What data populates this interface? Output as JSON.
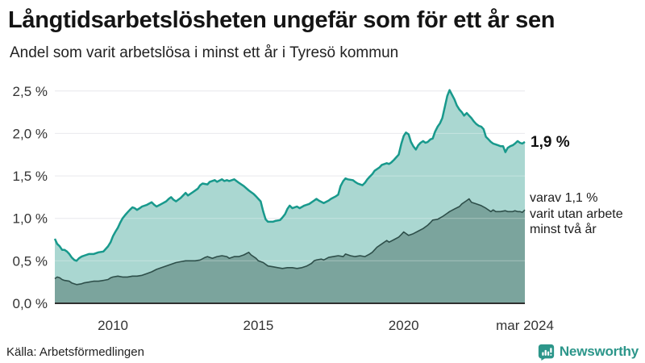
{
  "header": {
    "title": "Långtidsarbetslösheten ungefär som för ett år sen",
    "subtitle": "Andel som varit arbetslösa i minst ett år i Tyresö kommun"
  },
  "annotations": {
    "latest_value": "1,9 %",
    "secondary": "varav 1,1 %\nvarit utan arbete\nminst två år"
  },
  "footer": {
    "source": "Källa: Arbetsförmedlingen",
    "brand": "Newsworthy"
  },
  "colors": {
    "line_1yr": "#18998c",
    "fill_1yr": "#aad7d1",
    "line_2yr": "#2e4f4a",
    "fill_2yr": "#7ba49d",
    "grid": "#e2e2e6",
    "grid_overlay": "rgba(255,255,255,0.32)",
    "axis": "#2f2f2f",
    "brand": "#2c968a"
  },
  "chart_data": {
    "type": "area",
    "title": "Långtidsarbetslösheten ungefär som för ett år sen",
    "subtitle": "Andel som varit arbetslösa i minst ett år i Tyresö kommun",
    "xlabel": "",
    "ylabel": "",
    "grid": "horizontal",
    "legend": "none",
    "x_range": [
      2008.0,
      2024.17
    ],
    "ylim": [
      0,
      2.5
    ],
    "y_axis": {
      "values": [
        0,
        0.5,
        1.0,
        1.5,
        2.0,
        2.5
      ],
      "tick_labels": [
        "0,0 %",
        "0,5 %",
        "1,0 %",
        "1,5 %",
        "2,0 %",
        "2,5 %"
      ]
    },
    "x_axis": {
      "ticks": [
        {
          "value": 2010.0,
          "label": "2010"
        },
        {
          "value": 2015.0,
          "label": "2015"
        },
        {
          "value": 2020.0,
          "label": "2020"
        },
        {
          "value": 2024.17,
          "label": "mar 2024"
        }
      ]
    },
    "series": [
      {
        "name": "minst ett år",
        "end_label": "1,9 %",
        "end_value": 1.9,
        "points": [
          [
            2008.0,
            0.76
          ],
          [
            2008.08,
            0.7
          ],
          [
            2008.17,
            0.67
          ],
          [
            2008.25,
            0.63
          ],
          [
            2008.33,
            0.63
          ],
          [
            2008.42,
            0.61
          ],
          [
            2008.5,
            0.58
          ],
          [
            2008.58,
            0.54
          ],
          [
            2008.67,
            0.51
          ],
          [
            2008.75,
            0.5
          ],
          [
            2008.83,
            0.53
          ],
          [
            2008.92,
            0.55
          ],
          [
            2009.0,
            0.56
          ],
          [
            2009.17,
            0.58
          ],
          [
            2009.33,
            0.58
          ],
          [
            2009.5,
            0.6
          ],
          [
            2009.67,
            0.61
          ],
          [
            2009.75,
            0.64
          ],
          [
            2009.83,
            0.67
          ],
          [
            2009.92,
            0.72
          ],
          [
            2010.0,
            0.79
          ],
          [
            2010.08,
            0.84
          ],
          [
            2010.17,
            0.89
          ],
          [
            2010.25,
            0.95
          ],
          [
            2010.33,
            1.0
          ],
          [
            2010.42,
            1.04
          ],
          [
            2010.5,
            1.07
          ],
          [
            2010.58,
            1.1
          ],
          [
            2010.67,
            1.13
          ],
          [
            2010.75,
            1.12
          ],
          [
            2010.83,
            1.1
          ],
          [
            2010.92,
            1.12
          ],
          [
            2011.0,
            1.14
          ],
          [
            2011.17,
            1.16
          ],
          [
            2011.33,
            1.19
          ],
          [
            2011.42,
            1.16
          ],
          [
            2011.5,
            1.14
          ],
          [
            2011.67,
            1.17
          ],
          [
            2011.83,
            1.2
          ],
          [
            2011.92,
            1.23
          ],
          [
            2012.0,
            1.25
          ],
          [
            2012.08,
            1.22
          ],
          [
            2012.17,
            1.2
          ],
          [
            2012.33,
            1.24
          ],
          [
            2012.5,
            1.3
          ],
          [
            2012.58,
            1.27
          ],
          [
            2012.75,
            1.31
          ],
          [
            2012.92,
            1.35
          ],
          [
            2013.0,
            1.39
          ],
          [
            2013.08,
            1.41
          ],
          [
            2013.25,
            1.4
          ],
          [
            2013.33,
            1.43
          ],
          [
            2013.5,
            1.45
          ],
          [
            2013.58,
            1.43
          ],
          [
            2013.75,
            1.46
          ],
          [
            2013.83,
            1.44
          ],
          [
            2013.92,
            1.45
          ],
          [
            2014.0,
            1.44
          ],
          [
            2014.17,
            1.46
          ],
          [
            2014.25,
            1.44
          ],
          [
            2014.33,
            1.42
          ],
          [
            2014.5,
            1.38
          ],
          [
            2014.67,
            1.33
          ],
          [
            2014.83,
            1.29
          ],
          [
            2014.92,
            1.26
          ],
          [
            2015.0,
            1.23
          ],
          [
            2015.08,
            1.2
          ],
          [
            2015.17,
            1.08
          ],
          [
            2015.25,
            0.99
          ],
          [
            2015.33,
            0.96
          ],
          [
            2015.5,
            0.96
          ],
          [
            2015.58,
            0.97
          ],
          [
            2015.75,
            0.98
          ],
          [
            2015.83,
            1.01
          ],
          [
            2015.92,
            1.05
          ],
          [
            2016.0,
            1.11
          ],
          [
            2016.08,
            1.15
          ],
          [
            2016.17,
            1.12
          ],
          [
            2016.33,
            1.14
          ],
          [
            2016.42,
            1.12
          ],
          [
            2016.58,
            1.15
          ],
          [
            2016.75,
            1.17
          ],
          [
            2016.92,
            1.21
          ],
          [
            2017.0,
            1.23
          ],
          [
            2017.08,
            1.21
          ],
          [
            2017.25,
            1.18
          ],
          [
            2017.42,
            1.21
          ],
          [
            2017.5,
            1.23
          ],
          [
            2017.67,
            1.26
          ],
          [
            2017.75,
            1.28
          ],
          [
            2017.83,
            1.38
          ],
          [
            2017.92,
            1.44
          ],
          [
            2018.0,
            1.47
          ],
          [
            2018.08,
            1.46
          ],
          [
            2018.25,
            1.45
          ],
          [
            2018.33,
            1.43
          ],
          [
            2018.42,
            1.41
          ],
          [
            2018.5,
            1.4
          ],
          [
            2018.58,
            1.39
          ],
          [
            2018.67,
            1.42
          ],
          [
            2018.75,
            1.46
          ],
          [
            2018.83,
            1.49
          ],
          [
            2018.92,
            1.52
          ],
          [
            2019.0,
            1.56
          ],
          [
            2019.17,
            1.6
          ],
          [
            2019.25,
            1.63
          ],
          [
            2019.42,
            1.65
          ],
          [
            2019.5,
            1.64
          ],
          [
            2019.58,
            1.66
          ],
          [
            2019.67,
            1.69
          ],
          [
            2019.75,
            1.72
          ],
          [
            2019.83,
            1.75
          ],
          [
            2019.92,
            1.88
          ],
          [
            2020.0,
            1.97
          ],
          [
            2020.08,
            2.01
          ],
          [
            2020.17,
            1.99
          ],
          [
            2020.25,
            1.9
          ],
          [
            2020.33,
            1.85
          ],
          [
            2020.42,
            1.81
          ],
          [
            2020.5,
            1.86
          ],
          [
            2020.58,
            1.89
          ],
          [
            2020.67,
            1.91
          ],
          [
            2020.75,
            1.89
          ],
          [
            2020.83,
            1.9
          ],
          [
            2020.92,
            1.93
          ],
          [
            2021.0,
            1.94
          ],
          [
            2021.08,
            2.02
          ],
          [
            2021.17,
            2.08
          ],
          [
            2021.25,
            2.12
          ],
          [
            2021.33,
            2.18
          ],
          [
            2021.42,
            2.32
          ],
          [
            2021.5,
            2.44
          ],
          [
            2021.58,
            2.51
          ],
          [
            2021.67,
            2.45
          ],
          [
            2021.75,
            2.4
          ],
          [
            2021.83,
            2.33
          ],
          [
            2021.92,
            2.28
          ],
          [
            2022.0,
            2.25
          ],
          [
            2022.08,
            2.21
          ],
          [
            2022.17,
            2.24
          ],
          [
            2022.25,
            2.21
          ],
          [
            2022.33,
            2.18
          ],
          [
            2022.42,
            2.14
          ],
          [
            2022.5,
            2.11
          ],
          [
            2022.58,
            2.09
          ],
          [
            2022.67,
            2.08
          ],
          [
            2022.75,
            2.05
          ],
          [
            2022.83,
            1.96
          ],
          [
            2022.92,
            1.93
          ],
          [
            2023.0,
            1.9
          ],
          [
            2023.08,
            1.88
          ],
          [
            2023.17,
            1.87
          ],
          [
            2023.25,
            1.86
          ],
          [
            2023.33,
            1.85
          ],
          [
            2023.42,
            1.85
          ],
          [
            2023.5,
            1.78
          ],
          [
            2023.58,
            1.83
          ],
          [
            2023.67,
            1.85
          ],
          [
            2023.75,
            1.86
          ],
          [
            2023.83,
            1.88
          ],
          [
            2023.92,
            1.91
          ],
          [
            2024.0,
            1.89
          ],
          [
            2024.08,
            1.88
          ],
          [
            2024.17,
            1.9
          ]
        ]
      },
      {
        "name": "minst två år",
        "end_label": "varav 1,1 %\nvarit utan arbete\nminst två år",
        "end_value": 1.1,
        "points": [
          [
            2008.0,
            0.29
          ],
          [
            2008.08,
            0.31
          ],
          [
            2008.17,
            0.3
          ],
          [
            2008.25,
            0.28
          ],
          [
            2008.33,
            0.27
          ],
          [
            2008.5,
            0.26
          ],
          [
            2008.58,
            0.24
          ],
          [
            2008.75,
            0.22
          ],
          [
            2008.92,
            0.23
          ],
          [
            2009.0,
            0.24
          ],
          [
            2009.17,
            0.25
          ],
          [
            2009.33,
            0.26
          ],
          [
            2009.5,
            0.26
          ],
          [
            2009.67,
            0.27
          ],
          [
            2009.83,
            0.28
          ],
          [
            2009.92,
            0.3
          ],
          [
            2010.0,
            0.31
          ],
          [
            2010.17,
            0.32
          ],
          [
            2010.33,
            0.31
          ],
          [
            2010.5,
            0.31
          ],
          [
            2010.67,
            0.32
          ],
          [
            2010.83,
            0.32
          ],
          [
            2011.0,
            0.33
          ],
          [
            2011.17,
            0.35
          ],
          [
            2011.33,
            0.37
          ],
          [
            2011.5,
            0.4
          ],
          [
            2011.67,
            0.42
          ],
          [
            2011.83,
            0.44
          ],
          [
            2012.0,
            0.46
          ],
          [
            2012.17,
            0.48
          ],
          [
            2012.33,
            0.49
          ],
          [
            2012.5,
            0.5
          ],
          [
            2012.67,
            0.5
          ],
          [
            2012.83,
            0.5
          ],
          [
            2013.0,
            0.51
          ],
          [
            2013.17,
            0.54
          ],
          [
            2013.25,
            0.55
          ],
          [
            2013.42,
            0.53
          ],
          [
            2013.58,
            0.55
          ],
          [
            2013.75,
            0.56
          ],
          [
            2013.92,
            0.55
          ],
          [
            2014.0,
            0.53
          ],
          [
            2014.17,
            0.55
          ],
          [
            2014.33,
            0.55
          ],
          [
            2014.5,
            0.57
          ],
          [
            2014.67,
            0.6
          ],
          [
            2014.75,
            0.57
          ],
          [
            2014.92,
            0.53
          ],
          [
            2015.0,
            0.5
          ],
          [
            2015.17,
            0.48
          ],
          [
            2015.33,
            0.44
          ],
          [
            2015.5,
            0.43
          ],
          [
            2015.67,
            0.42
          ],
          [
            2015.83,
            0.41
          ],
          [
            2016.0,
            0.42
          ],
          [
            2016.17,
            0.42
          ],
          [
            2016.33,
            0.41
          ],
          [
            2016.5,
            0.42
          ],
          [
            2016.67,
            0.44
          ],
          [
            2016.83,
            0.47
          ],
          [
            2016.92,
            0.5
          ],
          [
            2017.0,
            0.51
          ],
          [
            2017.17,
            0.52
          ],
          [
            2017.25,
            0.51
          ],
          [
            2017.42,
            0.54
          ],
          [
            2017.58,
            0.55
          ],
          [
            2017.75,
            0.56
          ],
          [
            2017.92,
            0.55
          ],
          [
            2018.0,
            0.58
          ],
          [
            2018.17,
            0.56
          ],
          [
            2018.33,
            0.55
          ],
          [
            2018.5,
            0.56
          ],
          [
            2018.67,
            0.55
          ],
          [
            2018.83,
            0.58
          ],
          [
            2018.92,
            0.6
          ],
          [
            2019.0,
            0.63
          ],
          [
            2019.08,
            0.66
          ],
          [
            2019.25,
            0.7
          ],
          [
            2019.42,
            0.74
          ],
          [
            2019.5,
            0.72
          ],
          [
            2019.67,
            0.75
          ],
          [
            2019.83,
            0.78
          ],
          [
            2019.92,
            0.81
          ],
          [
            2020.0,
            0.84
          ],
          [
            2020.17,
            0.8
          ],
          [
            2020.33,
            0.82
          ],
          [
            2020.5,
            0.85
          ],
          [
            2020.67,
            0.88
          ],
          [
            2020.83,
            0.92
          ],
          [
            2020.92,
            0.95
          ],
          [
            2021.0,
            0.98
          ],
          [
            2021.17,
            0.99
          ],
          [
            2021.33,
            1.02
          ],
          [
            2021.5,
            1.06
          ],
          [
            2021.58,
            1.08
          ],
          [
            2021.75,
            1.11
          ],
          [
            2021.92,
            1.14
          ],
          [
            2022.0,
            1.17
          ],
          [
            2022.17,
            1.21
          ],
          [
            2022.25,
            1.23
          ],
          [
            2022.33,
            1.19
          ],
          [
            2022.5,
            1.17
          ],
          [
            2022.67,
            1.15
          ],
          [
            2022.83,
            1.12
          ],
          [
            2023.0,
            1.08
          ],
          [
            2023.08,
            1.1
          ],
          [
            2023.17,
            1.08
          ],
          [
            2023.33,
            1.08
          ],
          [
            2023.5,
            1.09
          ],
          [
            2023.58,
            1.08
          ],
          [
            2023.75,
            1.08
          ],
          [
            2023.83,
            1.09
          ],
          [
            2023.92,
            1.08
          ],
          [
            2024.0,
            1.08
          ],
          [
            2024.08,
            1.07
          ],
          [
            2024.17,
            1.1
          ]
        ]
      }
    ]
  }
}
